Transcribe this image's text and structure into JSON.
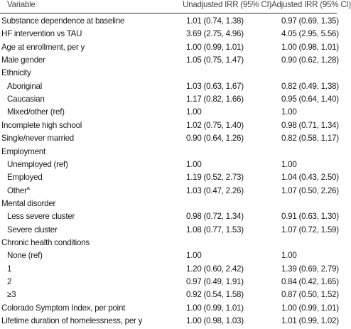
{
  "header": {
    "variable": "Variable",
    "unadjusted": "Unadjusted IRR (95% CI)",
    "adjusted": "Adjusted IRR (95% CI)"
  },
  "rows": [
    {
      "label": "Substance dependence at baseline",
      "unadjusted": "1.01 (0.74, 1.38)",
      "adjusted": "0.97 (0.69, 1.35)"
    },
    {
      "label": "HF intervention vs TAU",
      "unadjusted": "3.69 (2.75, 4.96)",
      "adjusted": "4.05 (2.95, 5.56)"
    },
    {
      "label": "Age at enrollment, per y",
      "unadjusted": "1.00 (0.99, 1.01)",
      "adjusted": "1.00 (0.98, 1.01)"
    },
    {
      "label": "Male gender",
      "unadjusted": "1.05 (0.75, 1.47)",
      "adjusted": "0.90 (0.62, 1.28)"
    },
    {
      "label": "Ethnicity",
      "unadjusted": "",
      "adjusted": ""
    },
    {
      "label": "Aboriginal",
      "unadjusted": "1.03 (0.63, 1.67)",
      "adjusted": "0.82 (0.49, 1.38)",
      "indent": true
    },
    {
      "label": "Caucasian",
      "unadjusted": "1.17 (0.82, 1.66)",
      "adjusted": "0.95 (0.64, 1.40)",
      "indent": true
    },
    {
      "label": "Mixed/other (ref)",
      "unadjusted": "1.00",
      "adjusted": "1.00",
      "indent": true
    },
    {
      "label": "Incomplete high school",
      "unadjusted": "1.02 (0.75, 1.40)",
      "adjusted": "0.98 (0.71, 1.34)"
    },
    {
      "label": "Single/never married",
      "unadjusted": "0.90 (0.64, 1.26)",
      "adjusted": "0.82 (0.58, 1.17)"
    },
    {
      "label": "Employment",
      "unadjusted": "",
      "adjusted": ""
    },
    {
      "label": "Unemployed (ref)",
      "unadjusted": "1.00",
      "adjusted": "1.00",
      "indent": true
    },
    {
      "label": "Employed",
      "unadjusted": "1.19 (0.52, 2.73)",
      "adjusted": "1.04 (0.43, 2.50)",
      "indent": true
    },
    {
      "label": "Other",
      "sup": "a",
      "unadjusted": "1.03 (0.47, 2.26)",
      "adjusted": "1.07 (0.50, 2.26)",
      "indent": true
    },
    {
      "label": "Mental disorder",
      "unadjusted": "",
      "adjusted": ""
    },
    {
      "label": "Less severe cluster",
      "unadjusted": "0.98 (0.72, 1.34)",
      "adjusted": "0.91 (0.63, 1.30)",
      "indent": true
    },
    {
      "label": "Severe cluster",
      "unadjusted": "1.08 (0.77, 1.53)",
      "adjusted": "1.07 (0.72, 1.59)",
      "indent": true
    },
    {
      "label": "Chronic health conditions",
      "unadjusted": "",
      "adjusted": ""
    },
    {
      "label": "None (ref)",
      "unadjusted": "1.00",
      "adjusted": "1.00",
      "indent": true
    },
    {
      "label": "1",
      "unadjusted": "1.20 (0.60, 2.42)",
      "adjusted": "1.39 (0.69, 2.79)",
      "indent": true
    },
    {
      "label": "2",
      "unadjusted": "0.97 (0.49, 1.91)",
      "adjusted": "0.84 (0.42, 1.65)",
      "indent": true
    },
    {
      "label": "≥3",
      "unadjusted": "0.92 (0.54, 1.58)",
      "adjusted": "0.87 (0.50, 1.52)",
      "indent": true
    },
    {
      "label": "Colorado Symptom Index, per point",
      "unadjusted": "1.00 (0.99, 1.01)",
      "adjusted": "1.00 (0.99, 1.01)"
    },
    {
      "label": "Lifetime duration of homelessness, per y",
      "unadjusted": "1.00 (0.98, 1.03)",
      "adjusted": "1.01 (0.99, 1.02)"
    }
  ]
}
